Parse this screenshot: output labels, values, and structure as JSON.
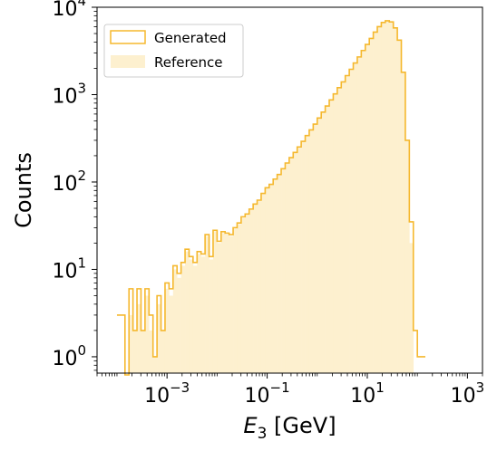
{
  "chart_data": {
    "type": "histogram",
    "xlabel": {
      "base": "E",
      "sub": "3",
      "unit": " [GeV]"
    },
    "ylabel": "Counts",
    "xscale": "log",
    "yscale": "log",
    "xlim": [
      4e-05,
      2000
    ],
    "ylim": [
      0.65,
      10000
    ],
    "grid": false,
    "legend_position": "upper-left",
    "x_ticks": [
      {
        "value": 0.001,
        "base": "10",
        "exp": "−3"
      },
      {
        "value": 0.1,
        "base": "10",
        "exp": "−1"
      },
      {
        "value": 10,
        "base": "10",
        "exp": "1"
      },
      {
        "value": 1000,
        "base": "10",
        "exp": "3"
      }
    ],
    "y_ticks": [
      {
        "value": 1,
        "base": "10",
        "exp": "0"
      },
      {
        "value": 10,
        "base": "10",
        "exp": "1"
      },
      {
        "value": 100,
        "base": "10",
        "exp": "2"
      },
      {
        "value": 1000,
        "base": "10",
        "exp": "3"
      },
      {
        "value": 10000,
        "base": "10",
        "exp": "4"
      }
    ],
    "bin_log10_start": -4.0,
    "bin_log10_width": 0.08,
    "series": [
      {
        "name": "Generated",
        "style": "step",
        "color": "#f5b82e",
        "counts": [
          3,
          3,
          0,
          6,
          2,
          6,
          2,
          6,
          3,
          1,
          5,
          2,
          7,
          6,
          11,
          9,
          12,
          17,
          14,
          12,
          16,
          15,
          25,
          14,
          28,
          21,
          27,
          26,
          25,
          30,
          34,
          40,
          43,
          49,
          56,
          62,
          74,
          86,
          94,
          108,
          122,
          142,
          165,
          190,
          218,
          252,
          292,
          340,
          395,
          460,
          540,
          630,
          740,
          870,
          1020,
          1200,
          1400,
          1650,
          1950,
          2300,
          2700,
          3200,
          3750,
          4400,
          5200,
          6000,
          6700,
          7000,
          6800,
          5800,
          4200,
          1800,
          300,
          35,
          2,
          1,
          1
        ]
      },
      {
        "name": "Reference",
        "style": "fill",
        "color": "#fdf0cf",
        "counts": [
          0,
          0,
          0,
          3,
          2,
          4,
          2,
          5,
          2,
          1,
          4,
          2,
          6,
          5,
          10,
          8,
          11,
          16,
          13,
          11,
          15,
          14,
          24,
          13,
          27,
          20,
          26,
          25,
          24,
          29,
          33,
          39,
          42,
          48,
          55,
          61,
          73,
          85,
          93,
          107,
          121,
          141,
          164,
          189,
          217,
          251,
          291,
          339,
          394,
          459,
          539,
          629,
          739,
          869,
          1019,
          1199,
          1399,
          1649,
          1949,
          2299,
          2699,
          3199,
          3749,
          4399,
          5199,
          5999,
          6699,
          6999,
          6799,
          5799,
          4199,
          1799,
          299,
          20,
          0,
          0,
          0
        ]
      }
    ]
  }
}
